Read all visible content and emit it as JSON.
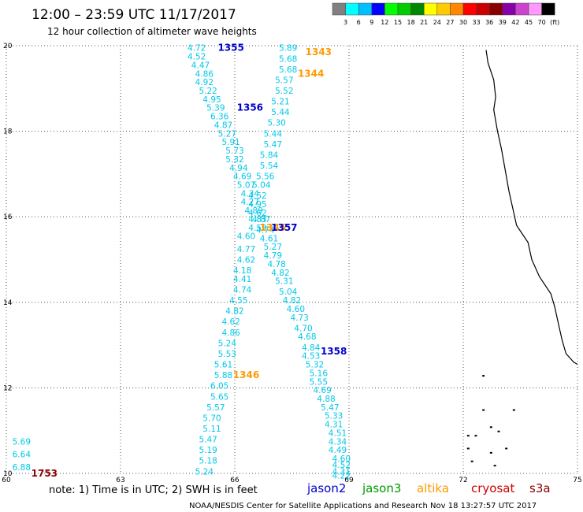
{
  "header": {
    "title": "12:00 – 23:59 UTC 11/17/2017",
    "subtitle": "12 hour collection of altimeter wave heights"
  },
  "color_scale": {
    "colors": [
      "#808080",
      "#00ffff",
      "#00c0ff",
      "#0000ff",
      "#00ff00",
      "#00cc00",
      "#008800",
      "#ffff00",
      "#ffcc00",
      "#ff8800",
      "#ff0000",
      "#cc0000",
      "#880000",
      "#8800aa",
      "#cc44cc",
      "#ff99ff",
      "#000000"
    ],
    "labels": [
      "3",
      "6",
      "9",
      "12",
      "15",
      "18",
      "21",
      "24",
      "27",
      "30",
      "33",
      "36",
      "39",
      "42",
      "45",
      "70",
      "(ft)"
    ]
  },
  "axes": {
    "x_ticks": [
      "60",
      "63",
      "66",
      "69",
      "72",
      "75"
    ],
    "y_ticks": [
      "10",
      "12",
      "14",
      "16",
      "18",
      "20"
    ]
  },
  "satellites": [
    {
      "name": "jason2",
      "color": "#0000cc"
    },
    {
      "name": "jason3",
      "color": "#009900"
    },
    {
      "name": "altika",
      "color": "#ff9900"
    },
    {
      "name": "cryosat",
      "color": "#cc0000"
    },
    {
      "name": "s3a",
      "color": "#880000"
    }
  ],
  "map_data": {
    "x_range": [
      60,
      75
    ],
    "y_range": [
      10,
      20
    ],
    "tracks": [
      {
        "name": "descending-left",
        "points": [
          {
            "lon": 65.0,
            "lat": 19.95,
            "swh": "4.72"
          },
          {
            "lon": 65.0,
            "lat": 19.75,
            "swh": "4.52"
          },
          {
            "lon": 65.1,
            "lat": 19.55,
            "swh": "4.47"
          },
          {
            "lon": 65.2,
            "lat": 19.35,
            "swh": "4.86"
          },
          {
            "lon": 65.2,
            "lat": 19.15,
            "swh": "4.92"
          },
          {
            "lon": 65.3,
            "lat": 18.95,
            "swh": "5.22"
          },
          {
            "lon": 65.4,
            "lat": 18.75,
            "swh": "4.95"
          },
          {
            "lon": 65.5,
            "lat": 18.55,
            "swh": "5.39"
          },
          {
            "lon": 65.6,
            "lat": 18.35,
            "swh": "6.36"
          },
          {
            "lon": 65.7,
            "lat": 18.15,
            "swh": "4.87"
          },
          {
            "lon": 65.8,
            "lat": 17.95,
            "swh": "5.27"
          },
          {
            "lon": 65.9,
            "lat": 17.75,
            "swh": "5.91"
          },
          {
            "lon": 66.0,
            "lat": 17.55,
            "swh": "5.73"
          },
          {
            "lon": 66.0,
            "lat": 17.35,
            "swh": "5.32"
          },
          {
            "lon": 66.1,
            "lat": 17.15,
            "swh": "4.94"
          },
          {
            "lon": 66.2,
            "lat": 16.95,
            "swh": "4.69"
          },
          {
            "lon": 66.3,
            "lat": 16.75,
            "swh": "5.07"
          },
          {
            "lon": 66.4,
            "lat": 16.55,
            "swh": "4.34"
          },
          {
            "lon": 66.4,
            "lat": 16.35,
            "swh": "4.27"
          },
          {
            "lon": 66.5,
            "lat": 16.15,
            "swh": "4.89"
          },
          {
            "lon": 66.6,
            "lat": 15.95,
            "swh": "4.83"
          },
          {
            "lon": 66.6,
            "lat": 15.75,
            "swh": "4.59"
          },
          {
            "lon": 66.3,
            "lat": 15.55,
            "swh": "4.60"
          },
          {
            "lon": 66.3,
            "lat": 15.25,
            "swh": "4.77"
          },
          {
            "lon": 66.3,
            "lat": 15.0,
            "swh": "4.62"
          },
          {
            "lon": 66.2,
            "lat": 14.75,
            "swh": "4.18"
          },
          {
            "lon": 66.2,
            "lat": 14.55,
            "swh": "4.41"
          },
          {
            "lon": 66.2,
            "lat": 14.3,
            "swh": "4.74"
          },
          {
            "lon": 66.1,
            "lat": 14.05,
            "swh": "4.55"
          },
          {
            "lon": 66.0,
            "lat": 13.8,
            "swh": "4.82"
          },
          {
            "lon": 65.9,
            "lat": 13.55,
            "swh": "4.62"
          },
          {
            "lon": 65.9,
            "lat": 13.3,
            "swh": "4.86"
          },
          {
            "lon": 65.8,
            "lat": 13.05,
            "swh": "5.24"
          },
          {
            "lon": 65.8,
            "lat": 12.8,
            "swh": "5.53"
          },
          {
            "lon": 65.7,
            "lat": 12.55,
            "swh": "5.61"
          },
          {
            "lon": 65.7,
            "lat": 12.3,
            "swh": "5.88"
          },
          {
            "lon": 65.6,
            "lat": 12.05,
            "swh": "6.05"
          },
          {
            "lon": 65.6,
            "lat": 11.8,
            "swh": "5.65"
          },
          {
            "lon": 65.5,
            "lat": 11.55,
            "swh": "5.57"
          },
          {
            "lon": 65.4,
            "lat": 11.3,
            "swh": "5.70"
          },
          {
            "lon": 65.4,
            "lat": 11.05,
            "swh": "5.11"
          },
          {
            "lon": 65.3,
            "lat": 10.8,
            "swh": "5.47"
          },
          {
            "lon": 65.3,
            "lat": 10.55,
            "swh": "5.19"
          },
          {
            "lon": 65.3,
            "lat": 10.3,
            "swh": "5.18"
          },
          {
            "lon": 65.2,
            "lat": 10.05,
            "swh": "5.24"
          }
        ]
      },
      {
        "name": "ascending-right",
        "points": [
          {
            "lon": 67.4,
            "lat": 19.95,
            "swh": "5.89"
          },
          {
            "lon": 67.4,
            "lat": 19.7,
            "swh": "5.68"
          },
          {
            "lon": 67.4,
            "lat": 19.45,
            "swh": "5.68"
          },
          {
            "lon": 67.3,
            "lat": 19.2,
            "swh": "5.57"
          },
          {
            "lon": 67.3,
            "lat": 18.95,
            "swh": "5.52"
          },
          {
            "lon": 67.2,
            "lat": 18.7,
            "swh": "5.21"
          },
          {
            "lon": 67.2,
            "lat": 18.45,
            "swh": "5.44"
          },
          {
            "lon": 67.1,
            "lat": 18.2,
            "swh": "5.30"
          },
          {
            "lon": 67.0,
            "lat": 17.95,
            "swh": "5.44"
          },
          {
            "lon": 67.0,
            "lat": 17.7,
            "swh": "5.47"
          },
          {
            "lon": 66.9,
            "lat": 17.45,
            "swh": "5.84"
          },
          {
            "lon": 66.9,
            "lat": 17.2,
            "swh": "5.54"
          },
          {
            "lon": 66.8,
            "lat": 16.95,
            "swh": "5.56"
          },
          {
            "lon": 66.7,
            "lat": 16.75,
            "swh": "5.04"
          },
          {
            "lon": 66.6,
            "lat": 16.5,
            "swh": "4.52"
          },
          {
            "lon": 66.6,
            "lat": 16.3,
            "swh": "4.95"
          },
          {
            "lon": 66.6,
            "lat": 16.1,
            "swh": "4.62"
          },
          {
            "lon": 66.7,
            "lat": 15.95,
            "swh": "4.87"
          },
          {
            "lon": 66.8,
            "lat": 15.7,
            "swh": "4.74"
          },
          {
            "lon": 66.9,
            "lat": 15.5,
            "swh": "4.61"
          },
          {
            "lon": 67.0,
            "lat": 15.3,
            "swh": "5.27"
          },
          {
            "lon": 67.0,
            "lat": 15.1,
            "swh": "4.79"
          },
          {
            "lon": 67.1,
            "lat": 14.9,
            "swh": "4.78"
          },
          {
            "lon": 67.2,
            "lat": 14.7,
            "swh": "4.82"
          },
          {
            "lon": 67.3,
            "lat": 14.5,
            "swh": "5.31"
          },
          {
            "lon": 67.4,
            "lat": 14.25,
            "swh": "5.04"
          },
          {
            "lon": 67.5,
            "lat": 14.05,
            "swh": "4.82"
          },
          {
            "lon": 67.6,
            "lat": 13.85,
            "swh": "4.60"
          },
          {
            "lon": 67.7,
            "lat": 13.65,
            "swh": "4.73"
          },
          {
            "lon": 67.8,
            "lat": 13.4,
            "swh": "4.70"
          },
          {
            "lon": 67.9,
            "lat": 13.2,
            "swh": "4.68"
          },
          {
            "lon": 68.0,
            "lat": 12.95,
            "swh": "4.84"
          },
          {
            "lon": 68.0,
            "lat": 12.75,
            "swh": "4.53"
          },
          {
            "lon": 68.1,
            "lat": 12.55,
            "swh": "5.32"
          },
          {
            "lon": 68.2,
            "lat": 12.35,
            "swh": "5.16"
          },
          {
            "lon": 68.2,
            "lat": 12.15,
            "swh": "5.55"
          },
          {
            "lon": 68.3,
            "lat": 11.95,
            "swh": "4.69"
          },
          {
            "lon": 68.4,
            "lat": 11.75,
            "swh": "4.88"
          },
          {
            "lon": 68.5,
            "lat": 11.55,
            "swh": "5.47"
          },
          {
            "lon": 68.6,
            "lat": 11.35,
            "swh": "5.33"
          },
          {
            "lon": 68.6,
            "lat": 11.15,
            "swh": "4.31"
          },
          {
            "lon": 68.7,
            "lat": 10.95,
            "swh": "4.51"
          },
          {
            "lon": 68.7,
            "lat": 10.75,
            "swh": "4.34"
          },
          {
            "lon": 68.7,
            "lat": 10.55,
            "swh": "4.49"
          },
          {
            "lon": 68.8,
            "lat": 10.35,
            "swh": "4.60"
          },
          {
            "lon": 68.8,
            "lat": 10.2,
            "swh": "4.52"
          },
          {
            "lon": 68.8,
            "lat": 10.05,
            "swh": "4.31"
          },
          {
            "lon": 68.8,
            "lat": 9.95,
            "swh": "4.22"
          }
        ]
      },
      {
        "name": "corner",
        "points": [
          {
            "lon": 60.4,
            "lat": 10.75,
            "swh": "5.69"
          },
          {
            "lon": 60.4,
            "lat": 10.45,
            "swh": "6.64"
          },
          {
            "lon": 60.4,
            "lat": 10.15,
            "swh": "6.88"
          }
        ]
      }
    ],
    "pass_labels": [
      {
        "text": "1355",
        "lon": 65.9,
        "lat": 19.95,
        "color": "#0000cc"
      },
      {
        "text": "1343",
        "lon": 68.2,
        "lat": 19.85,
        "color": "#ff9900"
      },
      {
        "text": "1344",
        "lon": 68.0,
        "lat": 19.35,
        "color": "#ff9900"
      },
      {
        "text": "1356",
        "lon": 66.4,
        "lat": 18.55,
        "color": "#0000cc"
      },
      {
        "text": "1345",
        "lon": 67.0,
        "lat": 15.75,
        "color": "#ff9900"
      },
      {
        "text": "1357",
        "lon": 67.3,
        "lat": 15.75,
        "color": "#0000cc"
      },
      {
        "text": "1358",
        "lon": 68.6,
        "lat": 12.85,
        "color": "#0000cc"
      },
      {
        "text": "1346",
        "lon": 66.3,
        "lat": 12.3,
        "color": "#ff9900"
      },
      {
        "text": "1753",
        "lon": 61.0,
        "lat": 10.0,
        "color": "#880000"
      }
    ],
    "coastline": [
      [
        72.6,
        19.9
      ],
      [
        72.65,
        19.6
      ],
      [
        72.8,
        19.2
      ],
      [
        72.85,
        18.8
      ],
      [
        72.8,
        18.5
      ],
      [
        72.9,
        18.0
      ],
      [
        73.0,
        17.6
      ],
      [
        73.1,
        17.1
      ],
      [
        73.2,
        16.6
      ],
      [
        73.3,
        16.2
      ],
      [
        73.4,
        15.8
      ],
      [
        73.7,
        15.4
      ],
      [
        73.8,
        15.0
      ],
      [
        74.0,
        14.6
      ],
      [
        74.3,
        14.2
      ],
      [
        74.4,
        13.9
      ],
      [
        74.5,
        13.5
      ],
      [
        74.6,
        13.1
      ],
      [
        74.7,
        12.8
      ],
      [
        74.9,
        12.6
      ],
      [
        75.0,
        12.55
      ]
    ],
    "islands": [
      [
        72.1,
        10.9
      ],
      [
        72.3,
        10.9
      ],
      [
        72.5,
        11.5
      ],
      [
        72.2,
        10.3
      ],
      [
        72.7,
        10.5
      ],
      [
        72.9,
        11.0
      ],
      [
        73.1,
        10.6
      ],
      [
        72.5,
        12.3
      ],
      [
        73.3,
        11.5
      ],
      [
        72.7,
        11.1
      ],
      [
        72.8,
        10.2
      ],
      [
        72.1,
        10.6
      ]
    ]
  },
  "note": {
    "text": "note: 1) Time is in UTC; 2) SWH is in feet"
  },
  "footer": {
    "text": "NOAA/NESDIS Center for Satellite Applications and Research   Nov 18 13:27:57 UTC 2017"
  }
}
